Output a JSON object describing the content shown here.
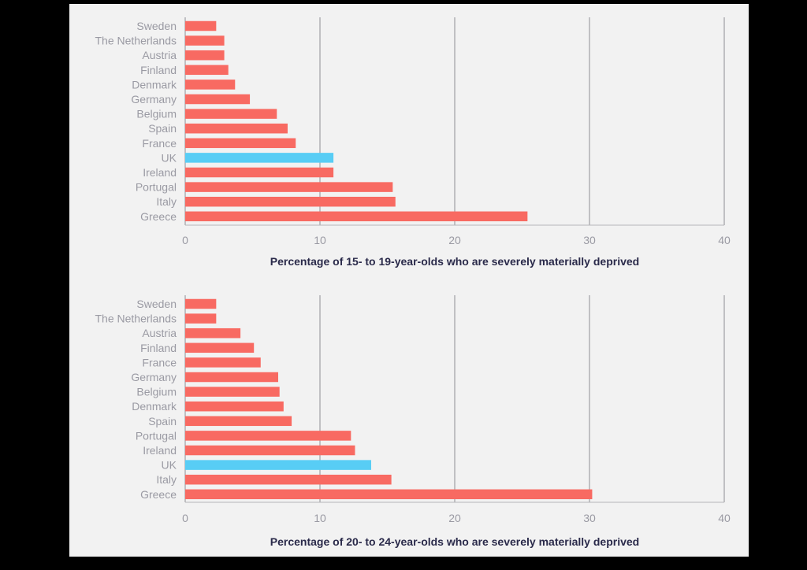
{
  "colors": {
    "bar": "#f86a62",
    "highlight": "#58cdf5",
    "grid": "#8f8f94",
    "label": "#9a9aa3",
    "title": "#2a2a4a"
  },
  "chart_data": [
    {
      "type": "bar",
      "orientation": "horizontal",
      "categories": [
        "Sweden",
        "The Netherlands",
        "Austria",
        "Finland",
        "Denmark",
        "Germany",
        "Belgium",
        "Spain",
        "France",
        "UK",
        "Ireland",
        "Portugal",
        "Italy",
        "Greece"
      ],
      "values": [
        2.3,
        2.9,
        2.9,
        3.2,
        3.7,
        4.8,
        6.8,
        7.6,
        8.2,
        11.0,
        11.0,
        15.4,
        15.6,
        25.4
      ],
      "highlight": "UK",
      "ticks": [
        0,
        10,
        20,
        30,
        40
      ],
      "xlim": [
        0,
        40
      ],
      "xlabel": "Percentage of 15- to 19-year-olds who are severely materially deprived",
      "ylabel": "",
      "grid": true
    },
    {
      "type": "bar",
      "orientation": "horizontal",
      "categories": [
        "Sweden",
        "The Netherlands",
        "Austria",
        "Finland",
        "France",
        "Germany",
        "Belgium",
        "Denmark",
        "Spain",
        "Portugal",
        "Ireland",
        "UK",
        "Italy",
        "Greece"
      ],
      "values": [
        2.3,
        2.3,
        4.1,
        5.1,
        5.6,
        6.9,
        7.0,
        7.3,
        7.9,
        12.3,
        12.6,
        13.8,
        15.3,
        30.2
      ],
      "highlight": "UK",
      "ticks": [
        0,
        10,
        20,
        30,
        40
      ],
      "xlim": [
        0,
        40
      ],
      "xlabel": "Percentage of 20- to 24-year-olds who are severely materially deprived",
      "ylabel": "",
      "grid": true
    }
  ]
}
